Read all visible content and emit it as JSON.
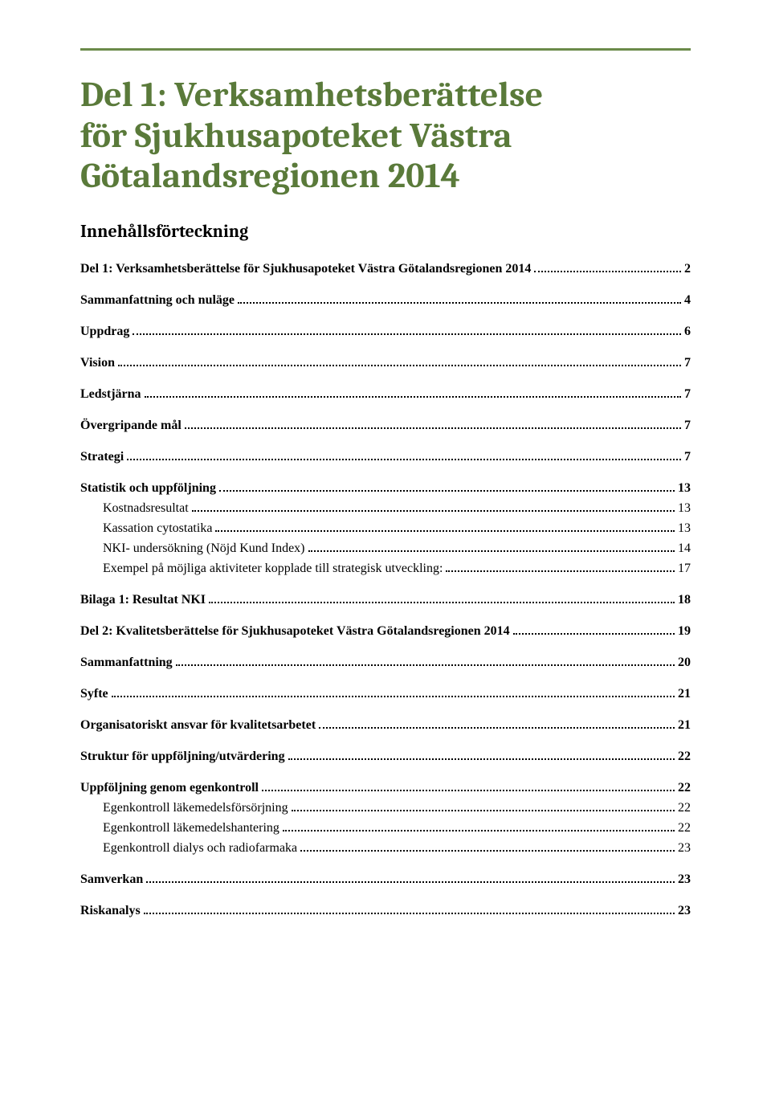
{
  "title_color": "#5a7a3a",
  "rule_color": "#6b8a4a",
  "title_lines": [
    "Del 1: Verksamhetsberättelse",
    "för Sjukhusapoteket Västra",
    "Götalandsregionen 2014"
  ],
  "title_fontsize": 44,
  "subtitle": "Innehållsförteckning",
  "subtitle_fontsize": 22,
  "item_fontsize": 16,
  "row_gap_bold": 18,
  "row_gap_sub": 4,
  "toc": [
    {
      "label": "Del 1: Verksamhetsberättelse för Sjukhusapoteket Västra Götalandsregionen 2014",
      "page": "2",
      "bold": true,
      "sub": false
    },
    {
      "label": "Sammanfattning och nuläge",
      "page": "4",
      "bold": true,
      "sub": false
    },
    {
      "label": "Uppdrag",
      "page": "6",
      "bold": true,
      "sub": false
    },
    {
      "label": "Vision",
      "page": "7",
      "bold": true,
      "sub": false
    },
    {
      "label": "Ledstjärna",
      "page": "7",
      "bold": true,
      "sub": false
    },
    {
      "label": "Övergripande mål",
      "page": "7",
      "bold": true,
      "sub": false
    },
    {
      "label": "Strategi",
      "page": "7",
      "bold": true,
      "sub": false
    },
    {
      "label": "Statistik och uppföljning",
      "page": "13",
      "bold": true,
      "sub": false
    },
    {
      "label": "Kostnadsresultat",
      "page": "13",
      "bold": false,
      "sub": true
    },
    {
      "label": "Kassation cytostatika",
      "page": "13",
      "bold": false,
      "sub": true
    },
    {
      "label": "NKI- undersökning (Nöjd Kund Index)",
      "page": "14",
      "bold": false,
      "sub": true
    },
    {
      "label": "Exempel på möjliga aktiviteter kopplade till strategisk utveckling:",
      "page": "17",
      "bold": false,
      "sub": true
    },
    {
      "label": "Bilaga 1: Resultat NKI",
      "page": "18",
      "bold": true,
      "sub": false
    },
    {
      "label": "Del 2: Kvalitetsberättelse för Sjukhusapoteket Västra Götalandsregionen 2014",
      "page": "19",
      "bold": true,
      "sub": false
    },
    {
      "label": "Sammanfattning",
      "page": "20",
      "bold": true,
      "sub": false
    },
    {
      "label": "Syfte",
      "page": "21",
      "bold": true,
      "sub": false
    },
    {
      "label": "Organisatoriskt ansvar för kvalitetsarbetet",
      "page": "21",
      "bold": true,
      "sub": false
    },
    {
      "label": "Struktur för uppföljning/utvärdering",
      "page": "22",
      "bold": true,
      "sub": false
    },
    {
      "label": "Uppföljning genom egenkontroll",
      "page": "22",
      "bold": true,
      "sub": false
    },
    {
      "label": "Egenkontroll läkemedelsförsörjning",
      "page": "22",
      "bold": false,
      "sub": true
    },
    {
      "label": "Egenkontroll läkemedelshantering",
      "page": "22",
      "bold": false,
      "sub": true
    },
    {
      "label": "Egenkontroll dialys och radiofarmaka",
      "page": "23",
      "bold": false,
      "sub": true
    },
    {
      "label": "Samverkan",
      "page": "23",
      "bold": true,
      "sub": false
    },
    {
      "label": "Riskanalys",
      "page": "23",
      "bold": true,
      "sub": false
    }
  ]
}
